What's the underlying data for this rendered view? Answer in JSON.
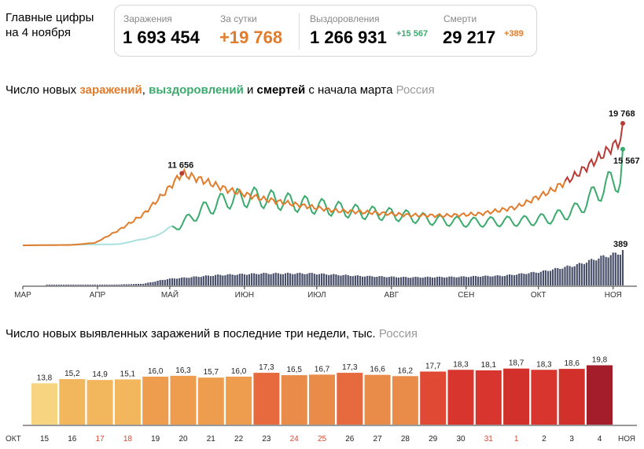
{
  "header": {
    "line1": "Главные цифры",
    "line2": "на 4 ноября"
  },
  "stats": {
    "infections_label": "Заражения",
    "infections_value": "1 693 454",
    "day_label": "За сутки",
    "day_value": "+19 768",
    "recovered_label": "Выздоровления",
    "recovered_value": "1 266 931",
    "recovered_delta": "+15 567",
    "deaths_label": "Смерти",
    "deaths_value": "29 217",
    "deaths_delta": "+389"
  },
  "colors": {
    "infections": "#e07c2b",
    "recovered": "#3aaa6d",
    "deaths": "#4a4f6a",
    "accent_red": "#d64a35"
  },
  "chart1": {
    "title_prefix": "Число новых ",
    "title_infections": "заражений",
    "title_comma": ", ",
    "title_recoveries": "выздоровлений",
    "title_and": " и ",
    "title_deaths": "смертей",
    "title_suffix": " с начала марта",
    "region": "Россия"
  },
  "chart2": {
    "title": "Число новых выявленных заражений в последние три недели, тыс.",
    "region": "Россия"
  },
  "chart_data": [
    {
      "type": "line",
      "x_labels": [
        "МАР",
        "АПР",
        "МАЙ",
        "ИЮН",
        "ИЮЛ",
        "АВГ",
        "СЕН",
        "ОКТ",
        "НОЯ"
      ],
      "series": [
        {
          "name": "заражений",
          "points": [
            [
              0,
              0
            ],
            [
              20,
              60
            ],
            [
              30,
              400
            ],
            [
              40,
              2500
            ],
            [
              50,
              5000
            ],
            [
              60,
              9000
            ],
            [
              66,
              11656
            ],
            [
              75,
              10500
            ],
            [
              85,
              9000
            ],
            [
              100,
              7500
            ],
            [
              115,
              6500
            ],
            [
              130,
              5600
            ],
            [
              145,
              5300
            ],
            [
              160,
              4900
            ],
            [
              175,
              4800
            ],
            [
              190,
              5100
            ],
            [
              205,
              6200
            ],
            [
              220,
              9000
            ],
            [
              230,
              11500
            ],
            [
              240,
              14500
            ],
            [
              248,
              17000
            ],
            [
              249,
              19768
            ]
          ]
        },
        {
          "name": "выздоровлений",
          "points": [
            [
              0,
              0
            ],
            [
              40,
              200
            ],
            [
              55,
              1500
            ],
            [
              65,
              4000
            ],
            [
              75,
              7000
            ],
            [
              85,
              9000
            ],
            [
              95,
              9500
            ],
            [
              110,
              8500
            ],
            [
              125,
              7500
            ],
            [
              140,
              6500
            ],
            [
              155,
              6000
            ],
            [
              170,
              5000
            ],
            [
              185,
              4500
            ],
            [
              200,
              4700
            ],
            [
              210,
              4800
            ],
            [
              220,
              5400
            ],
            [
              230,
              7000
            ],
            [
              240,
              11000
            ],
            [
              248,
              13500
            ],
            [
              249,
              15567
            ]
          ]
        },
        {
          "name": "смертей",
          "points": [
            [
              0,
              0
            ],
            [
              30,
              2
            ],
            [
              50,
              20
            ],
            [
              60,
              75
            ],
            [
              80,
              120
            ],
            [
              100,
              140
            ],
            [
              120,
              140
            ],
            [
              140,
              110
            ],
            [
              160,
              95
            ],
            [
              180,
              100
            ],
            [
              200,
              115
            ],
            [
              215,
              160
            ],
            [
              230,
              240
            ],
            [
              240,
              330
            ],
            [
              249,
              389
            ]
          ]
        }
      ],
      "annotations": [
        {
          "label": "11 656",
          "series": "заражений",
          "value": 11656
        },
        {
          "label": "19 768",
          "series": "заражений",
          "value": 19768
        },
        {
          "label": "15 567",
          "series": "выздоровлений",
          "value": 15567
        },
        {
          "label": "389",
          "series": "смертей",
          "value": 389
        }
      ]
    },
    {
      "type": "bar",
      "title": "Число новых выявленных заражений в последние три недели, тыс.",
      "categories": [
        "15",
        "16",
        "17",
        "18",
        "19",
        "20",
        "21",
        "22",
        "23",
        "24",
        "25",
        "26",
        "27",
        "28",
        "29",
        "30",
        "31",
        "1",
        "2",
        "3",
        "4"
      ],
      "values": [
        13.8,
        15.2,
        14.9,
        15.1,
        16.0,
        16.3,
        15.7,
        16.0,
        17.3,
        16.5,
        16.7,
        17.3,
        16.6,
        16.2,
        17.7,
        18.3,
        18.1,
        18.7,
        18.3,
        18.6,
        19.8
      ],
      "value_labels": [
        "13,8",
        "15,2",
        "14,9",
        "15,1",
        "16,0",
        "16,3",
        "15,7",
        "16,0",
        "17,3",
        "16,5",
        "16,7",
        "17,3",
        "16,6",
        "16,2",
        "17,7",
        "18,3",
        "18,1",
        "18,7",
        "18,3",
        "18,6",
        "19,8"
      ],
      "weekend": [
        false,
        false,
        true,
        true,
        false,
        false,
        false,
        false,
        false,
        true,
        true,
        false,
        false,
        false,
        false,
        false,
        true,
        true,
        false,
        false,
        false
      ],
      "colors": [
        "#f7d580",
        "#f2b65c",
        "#f2b65c",
        "#f2b65c",
        "#ee9c4e",
        "#ee9c4e",
        "#ee9c4e",
        "#ee9c4e",
        "#e66a3e",
        "#e98c4a",
        "#e98c4a",
        "#e66a3e",
        "#e98c4a",
        "#e98c4a",
        "#e04a35",
        "#d7352d",
        "#d7352d",
        "#d2302a",
        "#d7352d",
        "#d2302a",
        "#a31d2b"
      ],
      "x_start_label": "ОКТ",
      "x_end_label": "НОЯ",
      "ylim": [
        0,
        20
      ]
    }
  ]
}
